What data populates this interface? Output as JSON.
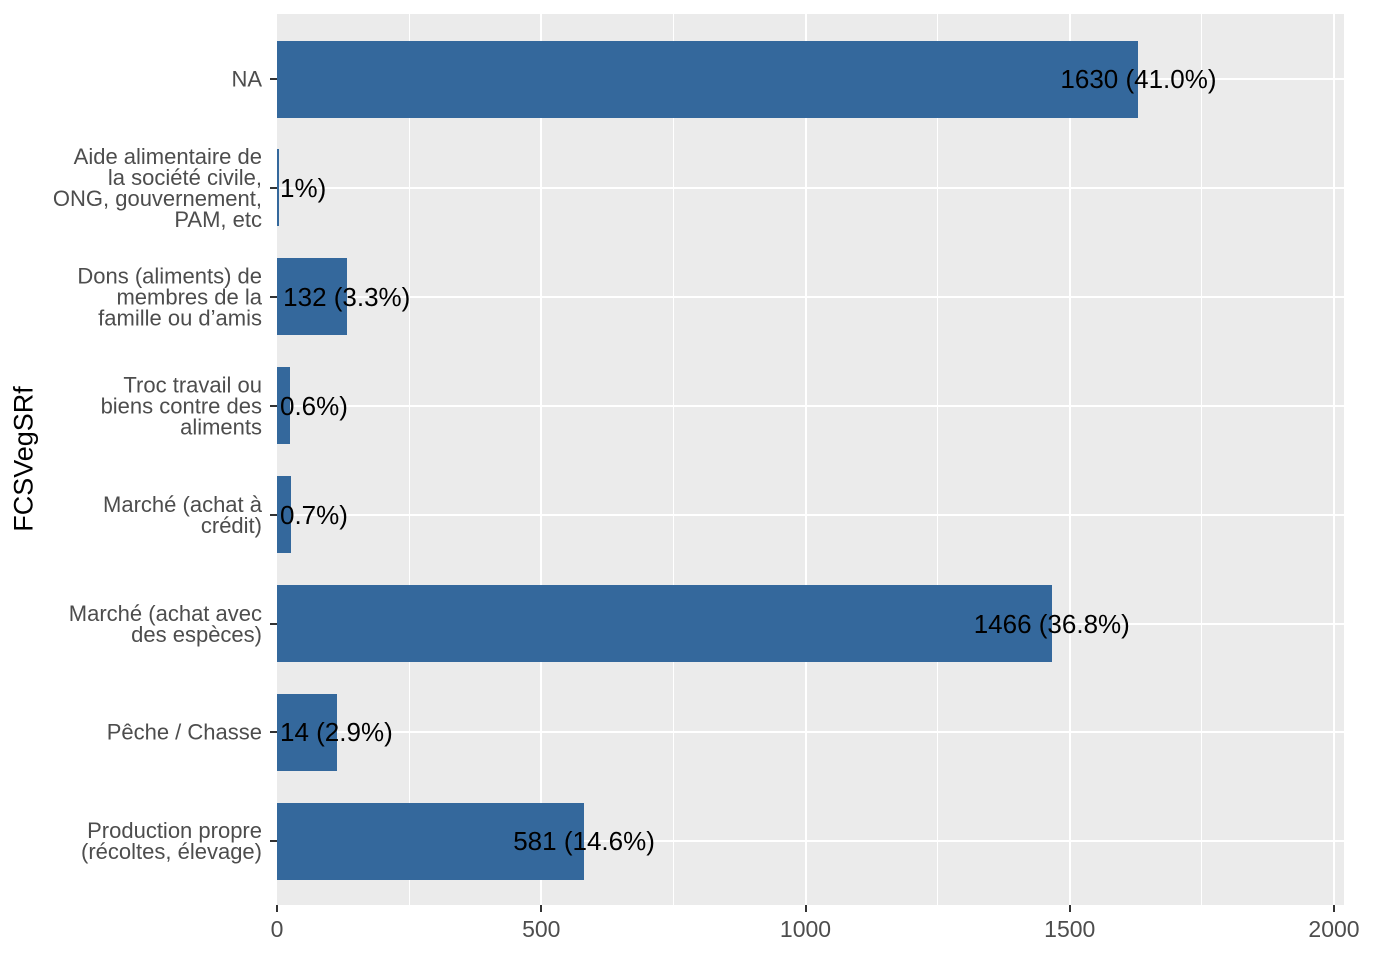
{
  "y_axis_title": "FCSVegSRf",
  "chart_data": {
    "type": "bar",
    "orientation": "horizontal",
    "title": "",
    "xlabel": "",
    "ylabel": "FCSVegSRf",
    "xlim": [
      0,
      2000
    ],
    "x_tick_values": [
      0,
      500,
      1000,
      1500,
      2000
    ],
    "x_tick_labels": [
      "0",
      "500",
      "1000",
      "1500",
      "2000"
    ],
    "x_minor_grid_values": [
      250,
      750,
      1250,
      1750
    ],
    "grid": true,
    "legend": "none",
    "colors": {
      "bar_fill": "#34689C",
      "panel_background": "#EBEBEB",
      "gridline": "#FFFFFF",
      "axis_text": "#4D4D4D",
      "axis_title": "#000000",
      "bar_label_text": "#000000",
      "tick_mark": "#333333"
    },
    "items": [
      {
        "category": "NA",
        "category_lines": [
          "NA"
        ],
        "value": 1630,
        "bar_label": "1630 (41.0%)",
        "bar_label_clipped_at_axis": false
      },
      {
        "category": "Aide alimentaire de la société civile, ONG, gouvernement, PAM, etc",
        "category_lines": [
          "Aide alimentaire de",
          "la société civile,",
          "ONG, gouvernement,",
          "PAM, etc"
        ],
        "value": 4,
        "bar_label": "1%)",
        "bar_label_clipped_at_axis": true
      },
      {
        "category": "Dons (aliments) de membres de la famille ou d’amis",
        "category_lines": [
          "Dons (aliments) de",
          "membres de la",
          "famille ou d’amis"
        ],
        "value": 132,
        "bar_label": "132 (3.3%)",
        "bar_label_clipped_at_axis": false
      },
      {
        "category": "Troc travail ou biens contre des aliments",
        "category_lines": [
          "Troc travail ou",
          "biens contre des",
          "aliments"
        ],
        "value": 24,
        "bar_label": "0.6%)",
        "bar_label_clipped_at_axis": true
      },
      {
        "category": "Marché (achat à crédit)",
        "category_lines": [
          "Marché (achat à",
          "crédit)"
        ],
        "value": 27,
        "bar_label": "0.7%)",
        "bar_label_clipped_at_axis": true
      },
      {
        "category": "Marché (achat avec des espèces)",
        "category_lines": [
          "Marché (achat avec",
          "des espèces)"
        ],
        "value": 1466,
        "bar_label": "1466 (36.8%)",
        "bar_label_clipped_at_axis": false
      },
      {
        "category": "Pêche / Chasse",
        "category_lines": [
          "Pêche / Chasse"
        ],
        "value": 114,
        "bar_label": "14 (2.9%)",
        "bar_label_clipped_at_axis": true
      },
      {
        "category": "Production propre (récoltes, élevage)",
        "category_lines": [
          "Production propre",
          "(récoltes, élevage)"
        ],
        "value": 581,
        "bar_label": "581 (14.6%)",
        "bar_label_clipped_at_axis": false
      }
    ]
  }
}
